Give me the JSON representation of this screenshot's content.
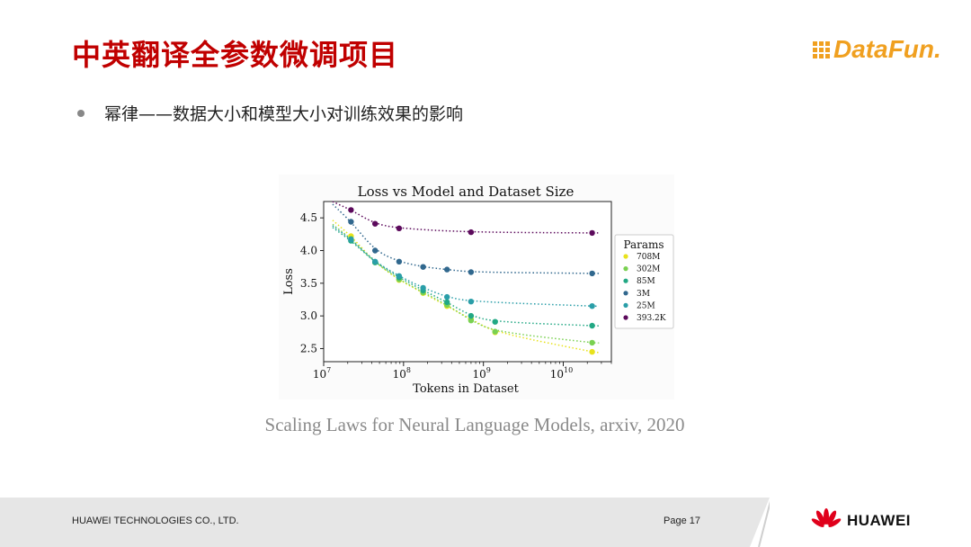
{
  "slide": {
    "title": "中英翻译全参数微调项目",
    "bullet": "幂律——数据大小和模型大小对训练效果的影响",
    "caption": "Scaling Laws for Neural Language Models, arxiv, 2020",
    "logo_text": "DataFun.",
    "footer_company": "HUAWEI TECHNOLOGIES CO., LTD.",
    "footer_page": "Page 17",
    "huawei_brand": "HUAWEI"
  },
  "colors": {
    "title": "#c00000",
    "logo": "#f0a020",
    "huawei_red": "#e0001b"
  },
  "chart_data": {
    "type": "scatter",
    "title": "Loss vs Model and Dataset Size",
    "xlabel": "Tokens in Dataset",
    "ylabel": "Loss",
    "xscale": "log",
    "xlim": [
      10000000,
      40000000000
    ],
    "ylim": [
      2.3,
      4.75
    ],
    "yticks": [
      2.5,
      3.0,
      3.5,
      4.0,
      4.5
    ],
    "ytick_labels": [
      "2.5",
      "3.0",
      "3.5",
      "4.0",
      "4.5"
    ],
    "xticks": [
      10000000,
      100000000,
      1000000000,
      10000000000
    ],
    "xtick_labels": [
      [
        "10",
        "7"
      ],
      [
        "10",
        "8"
      ],
      [
        "10",
        "9"
      ],
      [
        "10",
        "10"
      ]
    ],
    "legend_title": "Params",
    "legend_position": "right",
    "grid": false,
    "series": [
      {
        "name": "708M",
        "color": "#e8e21c",
        "x": [
          22000000,
          44000000,
          88000000,
          176000000,
          350000000,
          700000000,
          1400000000,
          23000000000
        ],
        "y": [
          4.22,
          3.82,
          3.55,
          3.35,
          3.15,
          2.95,
          2.75,
          2.45
        ]
      },
      {
        "name": "302M",
        "color": "#7ad151",
        "x": [
          22000000,
          44000000,
          88000000,
          176000000,
          350000000,
          700000000,
          1400000000,
          23000000000
        ],
        "y": [
          4.18,
          3.82,
          3.56,
          3.36,
          3.17,
          2.93,
          2.76,
          2.59
        ]
      },
      {
        "name": "85M",
        "color": "#22a884",
        "x": [
          22000000,
          44000000,
          88000000,
          176000000,
          350000000,
          700000000,
          1400000000,
          23000000000
        ],
        "y": [
          4.15,
          3.82,
          3.59,
          3.39,
          3.21,
          3.0,
          2.91,
          2.85
        ]
      },
      {
        "name": "3M",
        "color": "#31688e",
        "x": [
          22000000,
          44000000,
          88000000,
          176000000,
          350000000,
          700000000,
          23000000000
        ],
        "y": [
          4.44,
          4.0,
          3.83,
          3.75,
          3.71,
          3.67,
          3.65
        ]
      },
      {
        "name": "25M",
        "color": "#2a9ea8",
        "x": [
          22000000,
          44000000,
          88000000,
          176000000,
          350000000,
          700000000,
          23000000000
        ],
        "y": [
          4.17,
          3.83,
          3.61,
          3.43,
          3.29,
          3.22,
          3.15
        ]
      },
      {
        "name": "393.2K",
        "color": "#5c0a5c",
        "x": [
          22000000,
          44000000,
          88000000,
          700000000,
          23000000000
        ],
        "y": [
          4.62,
          4.41,
          4.34,
          4.28,
          4.27
        ]
      }
    ]
  }
}
